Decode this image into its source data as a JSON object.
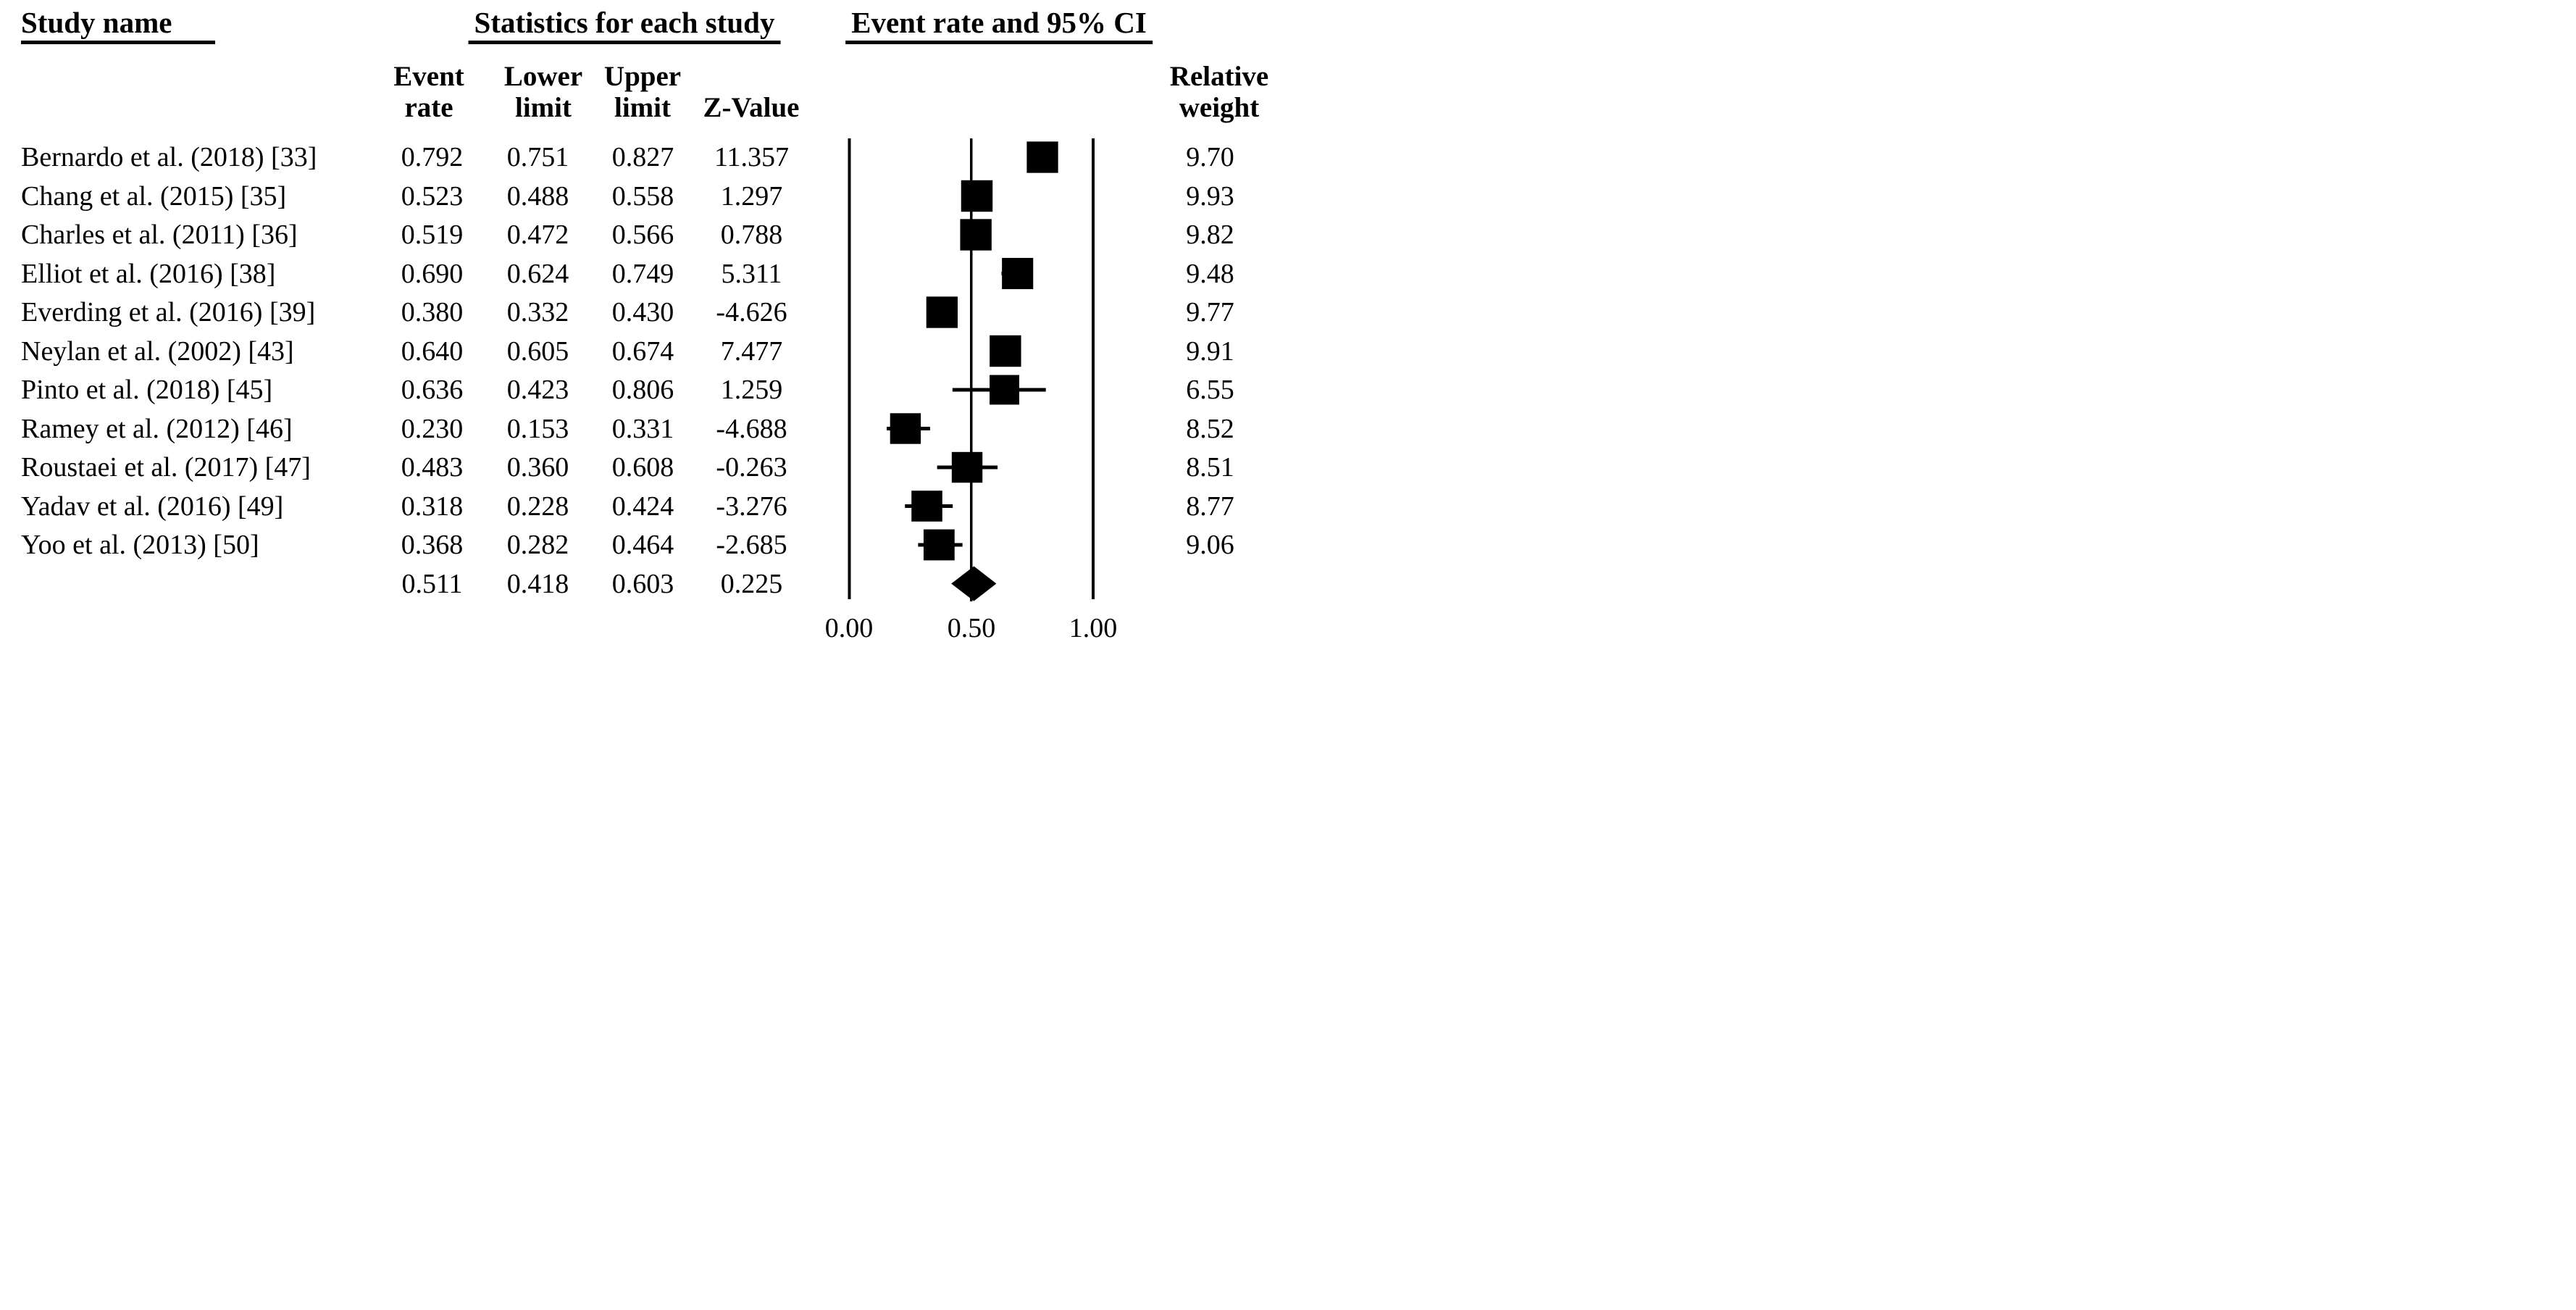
{
  "headers": {
    "study_name": "Study name",
    "statistics": "Statistics for each study",
    "ci": "Event rate and 95% CI"
  },
  "column_headers": {
    "event_rate": "Event\nrate",
    "lower_limit": "Lower\nlimit",
    "upper_limit": "Upper\nlimit",
    "z_value": "Z-Value",
    "relative_weight": "Relative\nweight"
  },
  "axis": {
    "ticks": [
      "0.00",
      "0.50",
      "1.00"
    ],
    "min": 0.0,
    "max": 1.0,
    "reference_line": 0.5
  },
  "colors": {
    "foreground": "#000000",
    "background": "#ffffff"
  },
  "chart_data": {
    "type": "forest",
    "title": "Event rate and 95% CI",
    "studies": [
      {
        "name": "Bernardo et al. (2018) [33]",
        "event_rate": "0.792",
        "lower": "0.751",
        "upper": "0.827",
        "z": "11.357",
        "weight": "9.70"
      },
      {
        "name": "Chang et al. (2015) [35]",
        "event_rate": "0.523",
        "lower": "0.488",
        "upper": "0.558",
        "z": "1.297",
        "weight": "9.93"
      },
      {
        "name": "Charles et al. (2011) [36]",
        "event_rate": "0.519",
        "lower": "0.472",
        "upper": "0.566",
        "z": "0.788",
        "weight": "9.82"
      },
      {
        "name": "Elliot et al. (2016) [38]",
        "event_rate": "0.690",
        "lower": "0.624",
        "upper": "0.749",
        "z": "5.311",
        "weight": "9.48"
      },
      {
        "name": "Everding et al. (2016) [39]",
        "event_rate": "0.380",
        "lower": "0.332",
        "upper": "0.430",
        "z": "-4.626",
        "weight": "9.77"
      },
      {
        "name": "Neylan et al. (2002) [43]",
        "event_rate": "0.640",
        "lower": "0.605",
        "upper": "0.674",
        "z": "7.477",
        "weight": "9.91"
      },
      {
        "name": "Pinto et al. (2018) [45]",
        "event_rate": "0.636",
        "lower": "0.423",
        "upper": "0.806",
        "z": "1.259",
        "weight": "6.55"
      },
      {
        "name": "Ramey et al. (2012) [46]",
        "event_rate": "0.230",
        "lower": "0.153",
        "upper": "0.331",
        "z": "-4.688",
        "weight": "8.52"
      },
      {
        "name": "Roustaei et al. (2017) [47]",
        "event_rate": "0.483",
        "lower": "0.360",
        "upper": "0.608",
        "z": "-0.263",
        "weight": "8.51"
      },
      {
        "name": "Yadav et al. (2016) [49]",
        "event_rate": "0.318",
        "lower": "0.228",
        "upper": "0.424",
        "z": "-3.276",
        "weight": "8.77"
      },
      {
        "name": "Yoo et al. (2013) [50]",
        "event_rate": "0.368",
        "lower": "0.282",
        "upper": "0.464",
        "z": "-2.685",
        "weight": "9.06"
      }
    ],
    "summary": {
      "event_rate": "0.511",
      "lower": "0.418",
      "upper": "0.603",
      "z": "0.225"
    }
  }
}
